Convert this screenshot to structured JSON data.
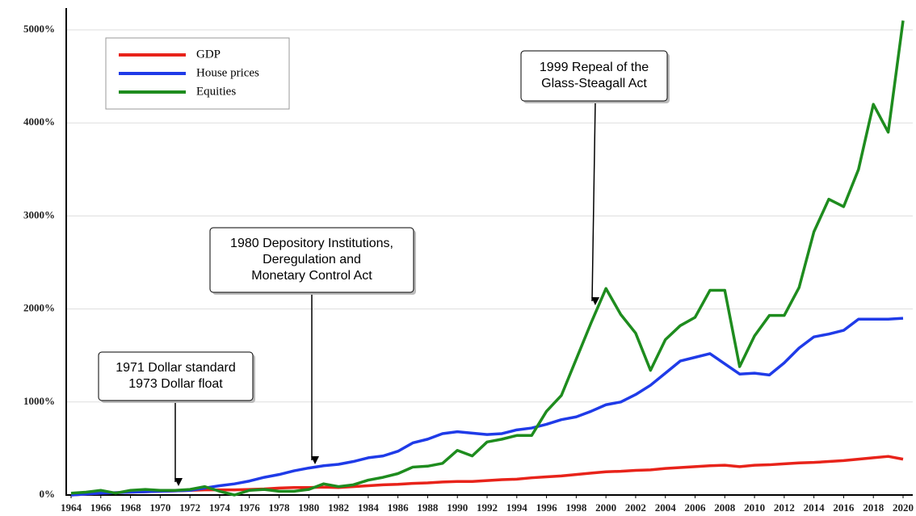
{
  "chart_data": {
    "type": "line",
    "x": [
      1964,
      1965,
      1966,
      1967,
      1968,
      1969,
      1970,
      1971,
      1972,
      1973,
      1974,
      1975,
      1976,
      1977,
      1978,
      1979,
      1980,
      1981,
      1982,
      1983,
      1984,
      1985,
      1986,
      1987,
      1988,
      1989,
      1990,
      1991,
      1992,
      1993,
      1994,
      1995,
      1996,
      1997,
      1998,
      1999,
      2000,
      2001,
      2002,
      2003,
      2004,
      2005,
      2006,
      2007,
      2008,
      2009,
      2010,
      2011,
      2012,
      2013,
      2014,
      2015,
      2016,
      2017,
      2018,
      2019,
      2020
    ],
    "series": [
      {
        "name": "GDP",
        "color": "#e8231a",
        "values": [
          0,
          10,
          20,
          25,
          30,
          35,
          40,
          45,
          50,
          55,
          55,
          55,
          60,
          65,
          75,
          80,
          80,
          85,
          80,
          90,
          100,
          110,
          115,
          125,
          130,
          140,
          145,
          145,
          155,
          165,
          170,
          185,
          195,
          205,
          220,
          235,
          250,
          255,
          265,
          270,
          285,
          295,
          305,
          315,
          320,
          305,
          320,
          325,
          335,
          345,
          350,
          360,
          370,
          385,
          400,
          415,
          385
        ]
      },
      {
        "name": "House prices",
        "color": "#1f3be8",
        "values": [
          0,
          10,
          20,
          25,
          30,
          35,
          40,
          45,
          50,
          75,
          100,
          120,
          150,
          190,
          220,
          260,
          290,
          315,
          330,
          360,
          400,
          420,
          470,
          560,
          600,
          660,
          680,
          665,
          650,
          660,
          700,
          720,
          760,
          810,
          840,
          900,
          970,
          1000,
          1080,
          1180,
          1310,
          1440,
          1480,
          1520,
          1410,
          1300,
          1310,
          1290,
          1420,
          1580,
          1700,
          1730,
          1770,
          1890,
          1890,
          1890,
          1900
        ]
      },
      {
        "name": "Equities",
        "color": "#1e8c1e",
        "values": [
          20,
          30,
          50,
          20,
          50,
          60,
          50,
          50,
          60,
          90,
          40,
          0,
          50,
          60,
          40,
          40,
          60,
          120,
          90,
          110,
          160,
          190,
          230,
          300,
          310,
          340,
          480,
          420,
          570,
          600,
          640,
          640,
          900,
          1070,
          1460,
          1850,
          2220,
          1940,
          1740,
          1340,
          1670,
          1820,
          1910,
          2200,
          2200,
          1380,
          1710,
          1930,
          1930,
          2230,
          2830,
          3180,
          3100,
          3500,
          4200,
          3900,
          5100
        ]
      }
    ],
    "xlim": [
      1964,
      2020
    ],
    "xticks": [
      1964,
      1966,
      1968,
      1970,
      1972,
      1974,
      1976,
      1978,
      1980,
      1982,
      1984,
      1986,
      1988,
      1990,
      1992,
      1994,
      1996,
      1998,
      2000,
      2002,
      2004,
      2006,
      2008,
      2010,
      2012,
      2014,
      2016,
      2018,
      2020
    ],
    "ylim": [
      0,
      5000
    ],
    "yticks": [
      {
        "value": 0,
        "label": "0%"
      },
      {
        "value": 1000,
        "label": "1000%"
      },
      {
        "value": 2000,
        "label": "2000%"
      },
      {
        "value": 3000,
        "label": "3000%"
      },
      {
        "value": 4000,
        "label": "4000%"
      },
      {
        "value": 5000,
        "label": "5000%"
      }
    ],
    "grid": true,
    "legend": "upper left",
    "annotations": [
      {
        "lines": [
          "1999 Repeal of the",
          "Glass-Steagall Act"
        ]
      },
      {
        "lines": [
          "1980 Depository Institutions,",
          "Deregulation and",
          "Monetary Control Act"
        ]
      },
      {
        "lines": [
          "1971 Dollar standard",
          "1973 Dollar float"
        ]
      }
    ]
  }
}
